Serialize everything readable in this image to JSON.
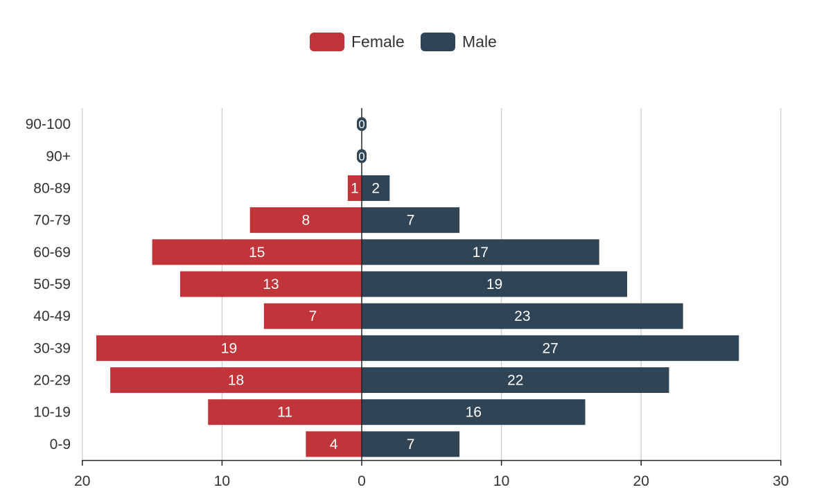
{
  "chart_data": {
    "type": "bar",
    "orientation": "horizontal-diverging",
    "title": "",
    "categories": [
      "0-9",
      "10-19",
      "20-29",
      "30-39",
      "40-49",
      "50-59",
      "60-69",
      "70-79",
      "80-89",
      "90+",
      "90-100"
    ],
    "series": [
      {
        "name": "Female",
        "color": "#c0343a",
        "values": [
          4,
          11,
          18,
          19,
          7,
          13,
          15,
          8,
          1,
          0,
          0
        ]
      },
      {
        "name": "Male",
        "color": "#2f4454",
        "values": [
          7,
          16,
          22,
          27,
          23,
          19,
          17,
          7,
          2,
          0,
          0
        ]
      }
    ],
    "xlim": [
      -20,
      30
    ],
    "xticks": [
      "20",
      "10",
      "0",
      "10",
      "20",
      "30"
    ],
    "grid": true,
    "legend_position": "top-center",
    "xlabel": "",
    "ylabel": ""
  }
}
